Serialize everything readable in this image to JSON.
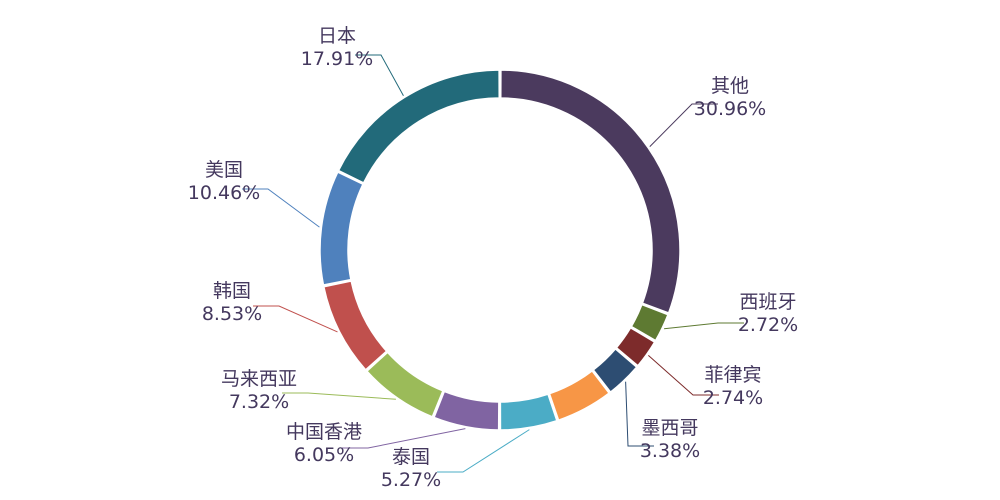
{
  "chart_data": {
    "type": "pie",
    "title": "",
    "subtitle": "",
    "donut": true,
    "legend": "none",
    "slices": [
      {
        "label": "其他",
        "value": 30.96,
        "pct_text": "30.96%",
        "color": "#4b3a5e"
      },
      {
        "label": "西班牙",
        "value": 2.72,
        "pct_text": "2.72%",
        "color": "#5e7a32"
      },
      {
        "label": "菲律宾",
        "value": 2.74,
        "pct_text": "2.74%",
        "color": "#7d2b2b"
      },
      {
        "label": "墨西哥",
        "value": 3.38,
        "pct_text": "3.38%",
        "color": "#2d4d72"
      },
      {
        "label": "",
        "value": 5.28,
        "pct_text": "",
        "color": "#f79646"
      },
      {
        "label": "泰国",
        "value": 5.27,
        "pct_text": "5.27%",
        "color": "#4bacc6"
      },
      {
        "label": "中国香港",
        "value": 6.05,
        "pct_text": "6.05%",
        "color": "#8064a2"
      },
      {
        "label": "马来西亚",
        "value": 7.32,
        "pct_text": "7.32%",
        "color": "#9bbb59"
      },
      {
        "label": "韩国",
        "value": 8.53,
        "pct_text": "8.53%",
        "color": "#c0504d"
      },
      {
        "label": "美国",
        "value": 10.46,
        "pct_text": "10.46%",
        "color": "#4f81bd"
      },
      {
        "label": "日本",
        "value": 17.91,
        "pct_text": "17.91%",
        "color": "#226a7a"
      }
    ]
  }
}
